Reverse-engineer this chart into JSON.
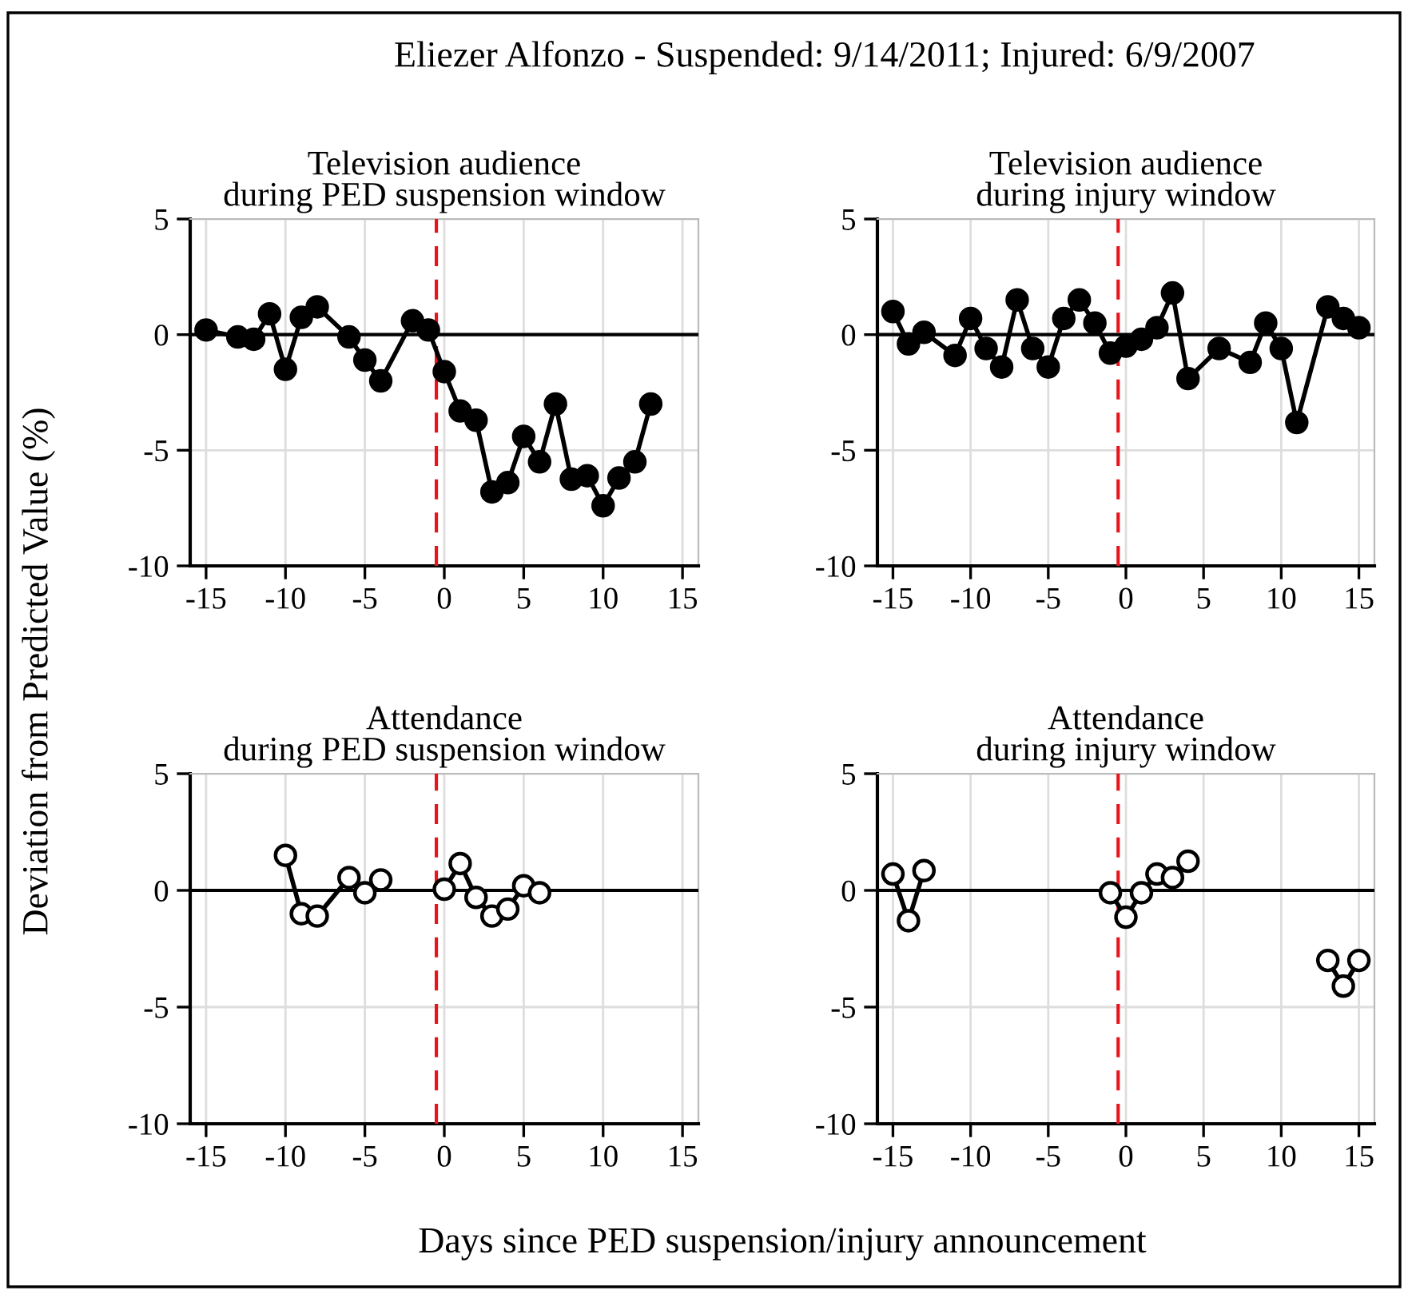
{
  "chart_data": [
    {
      "type": "line",
      "title": "Television audience\nduring PED suspension window",
      "ylabel": "Deviation from Predicted Value (%)",
      "xlabel": "Days since PED suspension/injury announcement",
      "annotations": [
        "Eliezer Alfonzo - Suspended: 9/14/2011; Injured: 6/9/2007"
      ],
      "series": [
        {
          "color": "#000000",
          "x": [
            -15,
            -13,
            -12,
            -11,
            -10,
            -9,
            -8,
            -6,
            -5,
            -4,
            -2,
            -1,
            0,
            1,
            2,
            3,
            4,
            5,
            6,
            7,
            8,
            9,
            10,
            11,
            12,
            13
          ],
          "values": [
            0.2,
            -0.1,
            -0.2,
            0.9,
            -1.5,
            0.75,
            1.2,
            -0.1,
            -1.1,
            -2.0,
            0.6,
            0.2,
            -1.6,
            -3.3,
            -3.7,
            -6.8,
            -6.4,
            -4.4,
            -5.5,
            -3.0,
            -6.25,
            -6.1,
            -7.4,
            -6.2,
            -5.5,
            -3.0
          ]
        }
      ],
      "xlim": [
        -16,
        16
      ],
      "ylim": [
        -10,
        5
      ],
      "xticks": [
        -15,
        -10,
        -5,
        0,
        5,
        10,
        15
      ],
      "yticks": [
        -10,
        -5,
        0,
        5
      ],
      "grid": true,
      "marker": "circle",
      "line_style": "solid",
      "ref_lines": [
        {
          "axis": "y",
          "value": 0,
          "color": "#000000",
          "line_style": "solid"
        },
        {
          "axis": "x",
          "value": -0.5,
          "color": "#e8141c",
          "line_style": "dashed"
        }
      ]
    },
    {
      "type": "line",
      "title": "Television audience\nduring injury window",
      "series": [
        {
          "color": "#000000",
          "x": [
            -15,
            -14,
            -13,
            -11,
            -10,
            -9,
            -8,
            -7,
            -6,
            -5,
            -4,
            -3,
            -2,
            -1,
            0,
            1,
            2,
            3,
            4,
            6,
            8,
            9,
            10,
            11,
            13,
            14,
            15
          ],
          "values": [
            1.0,
            -0.4,
            0.1,
            -0.9,
            0.7,
            -0.6,
            -1.4,
            1.5,
            -0.6,
            -1.4,
            0.7,
            1.5,
            0.5,
            -0.8,
            -0.5,
            -0.2,
            0.3,
            1.8,
            -1.9,
            -0.6,
            -1.2,
            0.5,
            -0.6,
            -3.8,
            1.2,
            0.7,
            0.3
          ]
        }
      ],
      "xlim": [
        -16,
        16
      ],
      "ylim": [
        -10,
        5
      ],
      "xticks": [
        -15,
        -10,
        -5,
        0,
        5,
        10,
        15
      ],
      "yticks": [
        -10,
        -5,
        0,
        5
      ],
      "grid": true,
      "marker": "circle",
      "line_style": "solid",
      "ref_lines": [
        {
          "axis": "y",
          "value": 0,
          "color": "#000000",
          "line_style": "solid"
        },
        {
          "axis": "x",
          "value": -0.5,
          "color": "#e8141c",
          "line_style": "dashed"
        }
      ]
    },
    {
      "type": "line",
      "title": "Attendance\nduring PED suspension window",
      "series": [
        {
          "color": "#000000",
          "x": [
            -10,
            -9,
            -8,
            -6,
            -5,
            -4,
            -2,
            0,
            1,
            2,
            3,
            4,
            5,
            6
          ],
          "values": [
            1.5,
            -1.0,
            -1.1,
            0.55,
            -0.1,
            0.45,
            null,
            0.05,
            1.15,
            -0.3,
            -1.1,
            -0.8,
            0.2,
            -0.1
          ]
        }
      ],
      "xlim": [
        -16,
        16
      ],
      "ylim": [
        -10,
        5
      ],
      "xticks": [
        -15,
        -10,
        -5,
        0,
        5,
        10,
        15
      ],
      "yticks": [
        -10,
        -5,
        0,
        5
      ],
      "grid": true,
      "marker": "circle",
      "line_style": "solid",
      "ref_lines": [
        {
          "axis": "y",
          "value": 0,
          "color": "#000000",
          "line_style": "solid"
        },
        {
          "axis": "x",
          "value": -0.5,
          "color": "#e8141c",
          "line_style": "dashed"
        }
      ]
    },
    {
      "type": "line",
      "title": "Attendance\nduring injury window",
      "series": [
        {
          "color": "#000000",
          "x": [
            -15,
            -14,
            -13,
            -7,
            -1,
            0,
            1,
            2,
            3,
            4,
            8,
            13,
            14,
            15
          ],
          "values": [
            0.7,
            -1.3,
            0.85,
            null,
            -0.1,
            -1.15,
            -0.1,
            0.7,
            0.55,
            1.25,
            null,
            -3.0,
            -4.1,
            -3.0
          ]
        }
      ],
      "xlim": [
        -16,
        16
      ],
      "ylim": [
        -10,
        5
      ],
      "xticks": [
        -15,
        -10,
        -5,
        0,
        5,
        10,
        15
      ],
      "yticks": [
        -10,
        -5,
        0,
        5
      ],
      "grid": true,
      "marker": "circle",
      "line_style": "solid",
      "ref_lines": [
        {
          "axis": "y",
          "value": 0,
          "color": "#000000",
          "line_style": "solid"
        },
        {
          "axis": "x",
          "value": -0.5,
          "color": "#e8141c",
          "line_style": "dashed"
        }
      ]
    }
  ]
}
